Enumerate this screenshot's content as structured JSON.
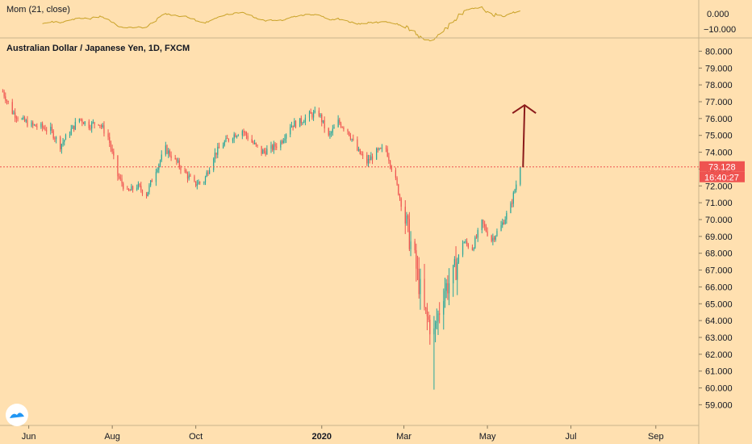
{
  "indicator": {
    "label": "Mom (21, close)",
    "ticks": [
      0,
      -10
    ],
    "tick_labels": [
      "0.000",
      "−10.000"
    ],
    "line_color": "#c9a227"
  },
  "main": {
    "title": "Australian Dollar / Japanese Yen, 1D, FXCM",
    "last_price": "73.128",
    "countdown": "16:40:27"
  },
  "chart_data": {
    "type": "candlestick",
    "title": "Australian Dollar / Japanese Yen, 1D, FXCM",
    "x_labels": [
      "Jun",
      "Aug",
      "Oct",
      "2020",
      "Mar",
      "May",
      "Jul",
      "Sep"
    ],
    "y_ticks": [
      59,
      60,
      61,
      62,
      63,
      64,
      65,
      66,
      67,
      68,
      69,
      70,
      71,
      72,
      73,
      74,
      75,
      76,
      77,
      78,
      79,
      80
    ],
    "y_tick_labels": [
      "59.000",
      "60.000",
      "61.000",
      "62.000",
      "63.000",
      "64.000",
      "65.000",
      "66.000",
      "67.000",
      "68.000",
      "69.000",
      "70.000",
      "71.000",
      "72.000",
      "73.000",
      "74.000",
      "75.000",
      "76.000",
      "77.000",
      "78.000",
      "79.000",
      "80.000"
    ],
    "ylim": [
      58.3,
      80.5
    ],
    "last_price": 73.128,
    "up_color": "#26a69a",
    "down_color": "#ef5350",
    "close_path": [
      [
        "2019-05-13",
        77.6
      ],
      [
        "2019-05-20",
        76.4
      ],
      [
        "2019-05-27",
        75.9
      ],
      [
        "2019-06-03",
        75.6
      ],
      [
        "2019-06-10",
        75.5
      ],
      [
        "2019-06-17",
        75.3
      ],
      [
        "2019-06-24",
        74.4
      ],
      [
        "2019-07-01",
        75.2
      ],
      [
        "2019-07-08",
        76.0
      ],
      [
        "2019-07-15",
        75.6
      ],
      [
        "2019-07-22",
        75.8
      ],
      [
        "2019-07-29",
        74.9
      ],
      [
        "2019-08-05",
        72.6
      ],
      [
        "2019-08-12",
        71.6
      ],
      [
        "2019-08-19",
        72.0
      ],
      [
        "2019-08-26",
        71.5
      ],
      [
        "2019-09-02",
        73.0
      ],
      [
        "2019-09-09",
        74.2
      ],
      [
        "2019-09-16",
        73.5
      ],
      [
        "2019-09-23",
        72.8
      ],
      [
        "2019-09-30",
        72.1
      ],
      [
        "2019-10-07",
        72.3
      ],
      [
        "2019-10-14",
        73.8
      ],
      [
        "2019-10-21",
        74.5
      ],
      [
        "2019-10-28",
        75.0
      ],
      [
        "2019-11-04",
        75.3
      ],
      [
        "2019-11-11",
        74.6
      ],
      [
        "2019-11-18",
        74.0
      ],
      [
        "2019-11-25",
        74.2
      ],
      [
        "2019-12-02",
        74.6
      ],
      [
        "2019-12-09",
        75.6
      ],
      [
        "2019-12-16",
        75.8
      ],
      [
        "2019-12-23",
        76.2
      ],
      [
        "2019-12-30",
        76.3
      ],
      [
        "2020-01-06",
        74.9
      ],
      [
        "2020-01-13",
        75.8
      ],
      [
        "2020-01-20",
        75.3
      ],
      [
        "2020-01-27",
        74.1
      ],
      [
        "2020-02-03",
        73.4
      ],
      [
        "2020-02-10",
        74.0
      ],
      [
        "2020-02-17",
        74.2
      ],
      [
        "2020-02-24",
        72.3
      ],
      [
        "2020-03-02",
        70.0
      ],
      [
        "2020-03-09",
        67.5
      ],
      [
        "2020-03-16",
        64.5
      ],
      [
        "2020-03-23",
        63.2
      ],
      [
        "2020-03-30",
        65.8
      ],
      [
        "2020-04-06",
        66.6
      ],
      [
        "2020-04-13",
        68.7
      ],
      [
        "2020-04-20",
        68.3
      ],
      [
        "2020-04-27",
        69.8
      ],
      [
        "2020-05-04",
        68.8
      ],
      [
        "2020-05-11",
        69.6
      ],
      [
        "2020-05-18",
        70.8
      ],
      [
        "2020-05-25",
        73.1
      ]
    ],
    "annotation": {
      "type": "arrow",
      "color": "#8b1a1a",
      "from": [
        "2020-05-27",
        73.1
      ],
      "to": [
        "2020-05-27",
        76.8
      ]
    }
  }
}
